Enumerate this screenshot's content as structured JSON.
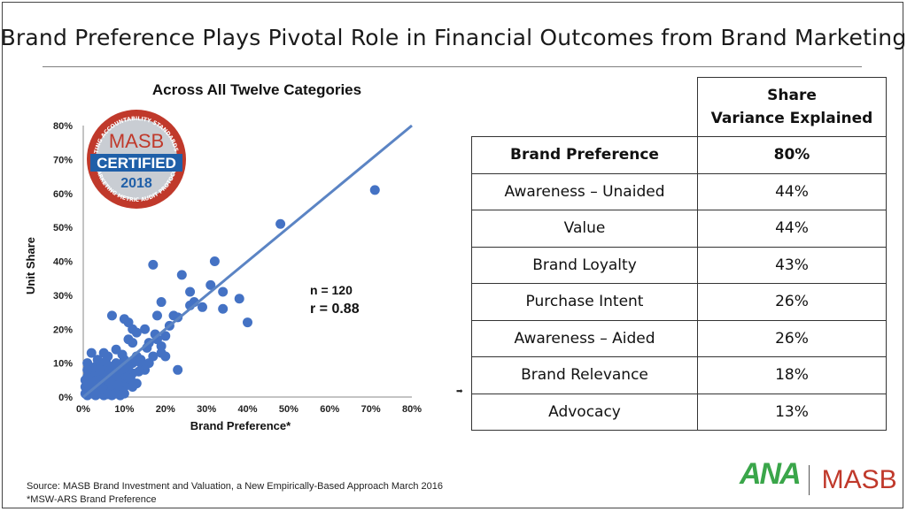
{
  "slide": {
    "title": "Brand Preference Plays Pivotal Role in Financial Outcomes from Brand Marketing",
    "source_line1": "Source: MASB Brand Investment and Valuation, a New Empirically-Based Approach  March 2016",
    "source_line2": "*MSW-ARS Brand Preference"
  },
  "seal": {
    "arc_text_top": "MARKETING ACCOUNTABILITY STANDARDS BOARD",
    "arc_text_bottom": "MARKETING METRIC AUDIT PROTOCOL",
    "org": "MASB",
    "certified": "CERTIFIED",
    "year": "2018",
    "colors": {
      "red": "#c0392b",
      "blue": "#1f5fa8",
      "silver": "#c9cdd3"
    }
  },
  "stats": {
    "n": "n = 120",
    "r": "r = 0.88"
  },
  "table": {
    "header": "Share\nVariance Explained",
    "header_line1": "Share",
    "header_line2": "Variance Explained",
    "rows": [
      {
        "metric": "Brand Preference",
        "value": "80%"
      },
      {
        "metric": "Awareness – Unaided",
        "value": "44%"
      },
      {
        "metric": "Value",
        "value": "44%"
      },
      {
        "metric": "Brand Loyalty",
        "value": "43%"
      },
      {
        "metric": "Purchase Intent",
        "value": "26%"
      },
      {
        "metric": "Awareness – Aided",
        "value": "26%"
      },
      {
        "metric": "Brand Relevance",
        "value": "18%"
      },
      {
        "metric": "Advocacy",
        "value": "13%"
      }
    ],
    "marker": "➡"
  },
  "logos": {
    "ana": "ANA",
    "masb": "MASB",
    "ana_color": "#3aa64a",
    "masb_color": "#c0392b"
  },
  "chart_data": {
    "type": "scatter",
    "title": "Across All Twelve Categories",
    "xlabel": "Brand Preference*",
    "ylabel": "Unit Share",
    "xlim": [
      0,
      80
    ],
    "ylim": [
      0,
      80
    ],
    "x_ticks": [
      "0%",
      "10%",
      "20%",
      "30%",
      "40%",
      "50%",
      "60%",
      "70%",
      "80%"
    ],
    "y_ticks": [
      "0%",
      "10%",
      "20%",
      "30%",
      "40%",
      "50%",
      "60%",
      "70%",
      "80%"
    ],
    "trendline": {
      "x": [
        0,
        80
      ],
      "y": [
        0,
        80
      ]
    },
    "point_color": "#4472c4",
    "line_color": "#5b84c4",
    "series": [
      {
        "points": [
          [
            71,
            61
          ],
          [
            48,
            51
          ],
          [
            32,
            40
          ],
          [
            17,
            39
          ],
          [
            24,
            36
          ],
          [
            31,
            33
          ],
          [
            34,
            31
          ],
          [
            26,
            31
          ],
          [
            38,
            29
          ],
          [
            19,
            28
          ],
          [
            26,
            27
          ],
          [
            22,
            24
          ],
          [
            34,
            26
          ],
          [
            40,
            22
          ],
          [
            7,
            24
          ],
          [
            10,
            23
          ],
          [
            11,
            22
          ],
          [
            18,
            24
          ],
          [
            12,
            20
          ],
          [
            13,
            19
          ],
          [
            15,
            20
          ],
          [
            11,
            17
          ],
          [
            12,
            16
          ],
          [
            18,
            17
          ],
          [
            20,
            18
          ],
          [
            16,
            16
          ],
          [
            19,
            15
          ],
          [
            8,
            14
          ],
          [
            5,
            13
          ],
          [
            2,
            13
          ],
          [
            6,
            12
          ],
          [
            13,
            12
          ],
          [
            14,
            11
          ],
          [
            17,
            12
          ],
          [
            19,
            13
          ],
          [
            20,
            12
          ],
          [
            10,
            11
          ],
          [
            12,
            10
          ],
          [
            14,
            10
          ],
          [
            16,
            10
          ],
          [
            1,
            10
          ],
          [
            3,
            9
          ],
          [
            5,
            9
          ],
          [
            7,
            9
          ],
          [
            9,
            9
          ],
          [
            11,
            9
          ],
          [
            15,
            8
          ],
          [
            23,
            8
          ],
          [
            2,
            8
          ],
          [
            4,
            7
          ],
          [
            6,
            7
          ],
          [
            8,
            7
          ],
          [
            10,
            7
          ],
          [
            12,
            7
          ],
          [
            1,
            6
          ],
          [
            3,
            6
          ],
          [
            5,
            6
          ],
          [
            7,
            6
          ],
          [
            9,
            6
          ],
          [
            11,
            6
          ],
          [
            2,
            5
          ],
          [
            4,
            5
          ],
          [
            6,
            5
          ],
          [
            8,
            5
          ],
          [
            10,
            5
          ],
          [
            1,
            4
          ],
          [
            3,
            4
          ],
          [
            5,
            4
          ],
          [
            7,
            4
          ],
          [
            9,
            4
          ],
          [
            11,
            4
          ],
          [
            13,
            4
          ],
          [
            2,
            3
          ],
          [
            4,
            3
          ],
          [
            6,
            3
          ],
          [
            8,
            3
          ],
          [
            10,
            3
          ],
          [
            12,
            3
          ],
          [
            1,
            2
          ],
          [
            3,
            2
          ],
          [
            5,
            2
          ],
          [
            7,
            2
          ],
          [
            9,
            2
          ],
          [
            0.5,
            1
          ],
          [
            2,
            1
          ],
          [
            4,
            1
          ],
          [
            6,
            1
          ],
          [
            8,
            1
          ],
          [
            10,
            1
          ],
          [
            1,
            0.5
          ],
          [
            3,
            0.5
          ],
          [
            5,
            0.5
          ],
          [
            7,
            0.5
          ],
          [
            9,
            0.5
          ],
          [
            0.5,
            3
          ],
          [
            0.5,
            5
          ],
          [
            1.5,
            7
          ],
          [
            3.5,
            11
          ],
          [
            5.5,
            10.5
          ],
          [
            7.5,
            8.5
          ],
          [
            9.5,
            12.5
          ],
          [
            6.5,
            4.5
          ],
          [
            4.5,
            2.5
          ],
          [
            2.5,
            1.5
          ],
          [
            8.5,
            3.5
          ],
          [
            11.5,
            5.5
          ],
          [
            13.5,
            7.5
          ],
          [
            15.5,
            14.5
          ],
          [
            17.5,
            18.5
          ],
          [
            21,
            21
          ],
          [
            23,
            23.5
          ],
          [
            27,
            28
          ],
          [
            29,
            26.5
          ],
          [
            2,
            4
          ],
          [
            3,
            0.8
          ],
          [
            6,
            0.8
          ],
          [
            4,
            8
          ],
          [
            9,
            8
          ],
          [
            1,
            8
          ],
          [
            8,
            10
          ]
        ]
      }
    ]
  }
}
